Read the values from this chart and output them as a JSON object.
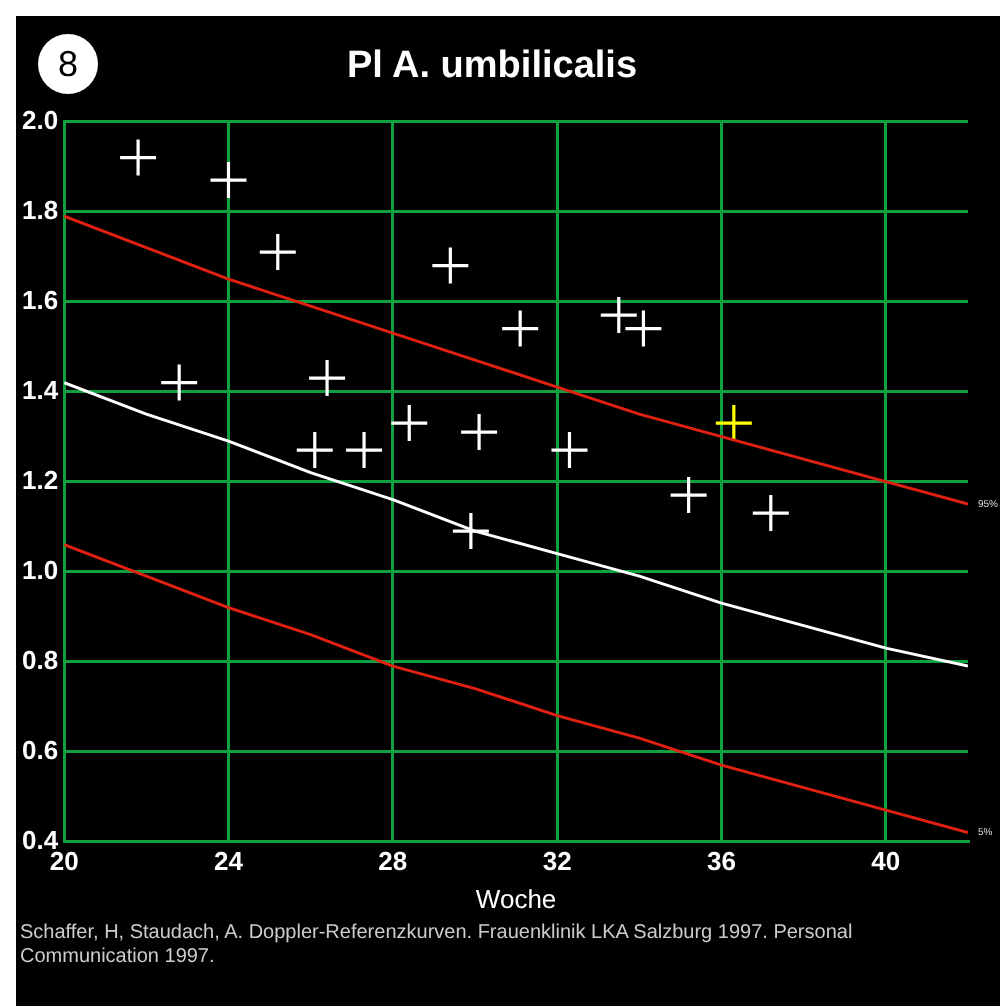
{
  "chart_data": {
    "type": "scatter",
    "title": "Pl A. umbilicalis",
    "xlabel": "Woche",
    "annotations": [
      "8",
      "Schaffer, H, Staudach, A. Doppler-Referenzkurven. Frauenklinik LKA Salzburg 1997. Personal Communication 1997.",
      {
        "text": "95%",
        "x": 42,
        "y": 1.15
      },
      {
        "text": "5%",
        "x": 42,
        "y": 0.42
      }
    ],
    "xlim": [
      20,
      42
    ],
    "xticks": [
      20,
      24,
      28,
      32,
      36,
      40
    ],
    "ylim": [
      0.4,
      2.0
    ],
    "yticks": [
      0.4,
      0.6,
      0.8,
      {
        "value": 1,
        "label": "1.0"
      },
      1.2,
      1.4,
      1.6,
      1.8,
      {
        "value": 2,
        "label": "2.0"
      }
    ],
    "grid": true,
    "legend": false,
    "series": [
      {
        "type": "line",
        "marker": "none",
        "color": "#e02010",
        "x": [
          20,
          22,
          24,
          26,
          28,
          30,
          32,
          34,
          36,
          38,
          40,
          42
        ],
        "values": [
          1.79,
          1.72,
          1.65,
          1.59,
          1.53,
          1.47,
          1.41,
          1.35,
          1.3,
          1.25,
          1.2,
          1.15
        ]
      },
      {
        "type": "line",
        "marker": "none",
        "color": "#ffffff",
        "x": [
          20,
          22,
          24,
          26,
          28,
          30,
          32,
          34,
          36,
          38,
          40,
          42
        ],
        "values": [
          1.42,
          1.35,
          1.29,
          1.22,
          1.16,
          1.09,
          1.04,
          0.99,
          0.93,
          0.88,
          0.83,
          0.79
        ]
      },
      {
        "type": "line",
        "marker": "none",
        "color": "#e02010",
        "x": [
          20,
          22,
          24,
          26,
          28,
          30,
          32,
          34,
          36,
          38,
          40,
          42
        ],
        "values": [
          1.06,
          0.99,
          0.92,
          0.86,
          0.79,
          0.74,
          0.68,
          0.63,
          0.57,
          0.52,
          0.47,
          0.42
        ]
      },
      {
        "marker": "cross",
        "color": "#ffffff",
        "x": [
          21.8,
          24.0,
          25.2,
          29.4,
          22.8,
          26.4,
          26.1,
          27.3,
          28.4,
          30.1,
          29.9,
          31.1,
          33.5,
          34.1,
          32.3,
          35.2,
          37.2
        ],
        "values": [
          1.92,
          1.87,
          1.71,
          1.68,
          1.42,
          1.43,
          1.27,
          1.27,
          1.33,
          1.31,
          1.09,
          1.54,
          1.57,
          1.54,
          1.27,
          1.17,
          1.13
        ]
      },
      {
        "marker": "cross",
        "color": "#ffff00",
        "x": [
          36.3
        ],
        "values": [
          1.33
        ]
      }
    ]
  }
}
